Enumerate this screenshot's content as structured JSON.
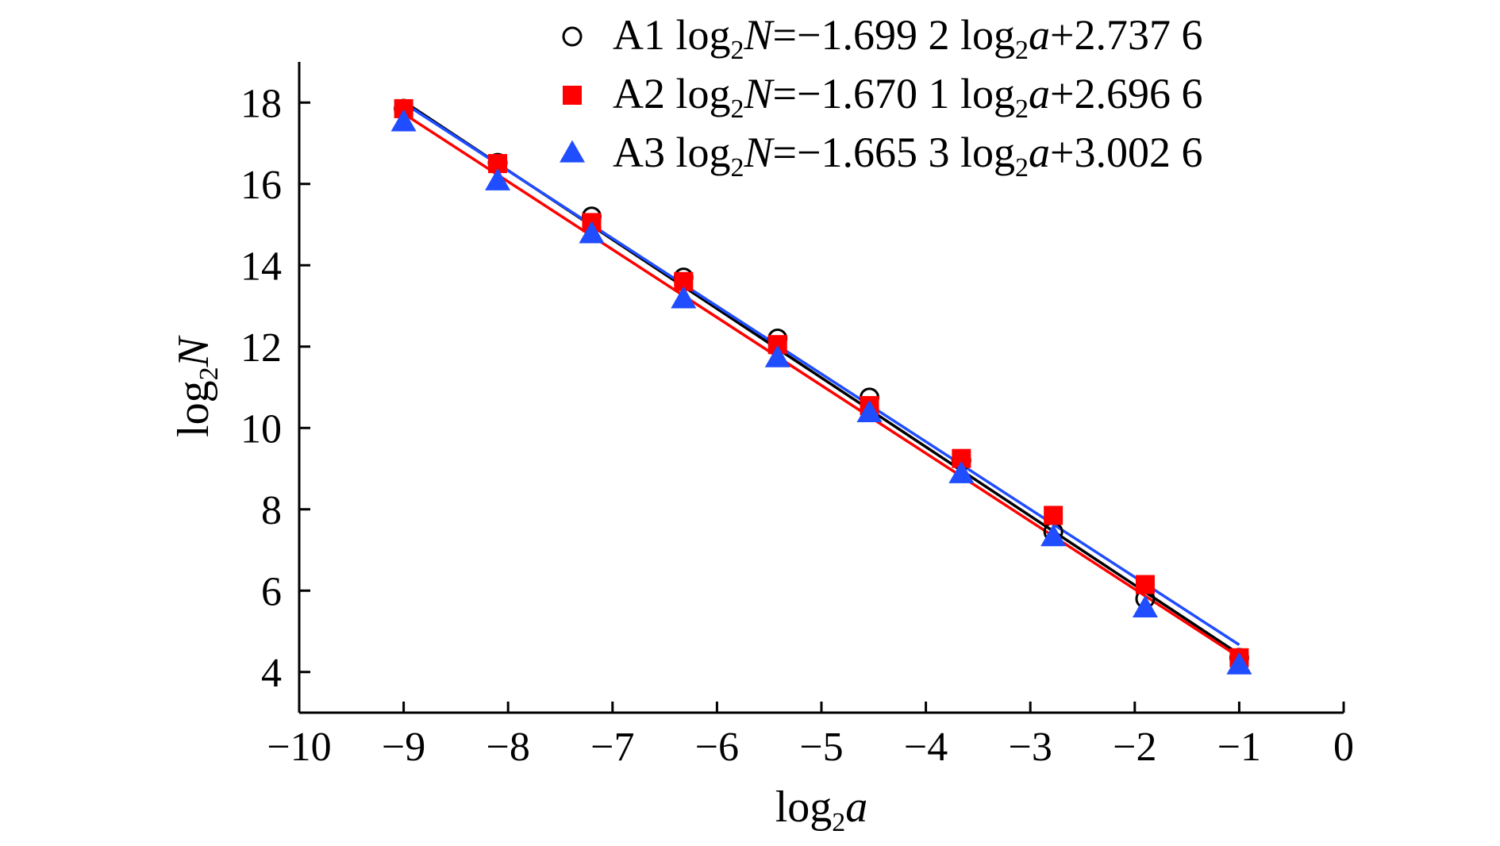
{
  "chart_data": {
    "type": "scatter",
    "title": "",
    "xlabel": {
      "base": "log",
      "sub": "2",
      "var": "a"
    },
    "ylabel": {
      "base": "log",
      "sub": "2",
      "var": "N"
    },
    "xlim": [
      -10,
      0
    ],
    "ylim": [
      3,
      19
    ],
    "xticks": [
      -10,
      -9,
      -8,
      -7,
      -6,
      -5,
      -4,
      -3,
      -2,
      -1,
      0
    ],
    "xtick_labels": [
      "−10",
      "−9",
      "−8",
      "−7",
      "−6",
      "−5",
      "−4",
      "−3",
      "−2",
      "−1",
      "0"
    ],
    "yticks": [
      4,
      6,
      8,
      10,
      12,
      14,
      16,
      18
    ],
    "ytick_labels": [
      "4",
      "6",
      "8",
      "10",
      "12",
      "14",
      "16",
      "18"
    ],
    "grid": false,
    "legend_position": "top-right",
    "series": [
      {
        "name": "A1",
        "marker": "open-circle",
        "color": "#000000",
        "equation": {
          "lhs_base": "log",
          "lhs_sub": "2",
          "lhs_var": "N",
          "eq": "=−1.699 2 ",
          "rhs_base": "log",
          "rhs_sub": "2",
          "rhs_var": "a",
          "tail": "+2.737 6"
        },
        "fit": {
          "slope": -1.6992,
          "intercept": 2.7376,
          "x_range": [
            -9,
            -1
          ]
        },
        "x": [
          -9,
          -8.1,
          -7.2,
          -6.32,
          -5.42,
          -4.54,
          -3.66,
          -2.78,
          -1.9,
          -1
        ],
        "y": [
          17.85,
          16.52,
          15.2,
          13.7,
          12.2,
          10.75,
          9.2,
          7.45,
          5.8,
          4.35
        ]
      },
      {
        "name": "A2",
        "marker": "filled-square",
        "color": "#ff0000",
        "equation": {
          "lhs_base": "log",
          "lhs_sub": "2",
          "lhs_var": "N",
          "eq": "=−1.670 1 ",
          "rhs_base": "log",
          "rhs_sub": "2",
          "rhs_var": "a",
          "tail": "+2.696 6"
        },
        "fit": {
          "slope": -1.6701,
          "intercept": 2.6966,
          "x_range": [
            -9,
            -1
          ]
        },
        "x": [
          -9,
          -8.1,
          -7.2,
          -6.32,
          -5.42,
          -4.54,
          -3.66,
          -2.78,
          -1.9,
          -1
        ],
        "y": [
          17.85,
          16.5,
          15.05,
          13.6,
          12.05,
          10.55,
          9.25,
          7.85,
          6.15,
          4.35
        ]
      },
      {
        "name": "A3",
        "marker": "filled-triangle",
        "color": "#1f4dff",
        "equation": {
          "lhs_base": "log",
          "lhs_sub": "2",
          "lhs_var": "N",
          "eq": "=−1.665 3 ",
          "rhs_base": "log",
          "rhs_sub": "2",
          "rhs_var": "a",
          "tail": "+3.002 6"
        },
        "fit": {
          "slope": -1.6653,
          "intercept": 3.0026,
          "x_range": [
            -9,
            -1
          ]
        },
        "x": [
          -9,
          -8.1,
          -7.2,
          -6.32,
          -5.42,
          -4.54,
          -3.66,
          -2.78,
          -1.9,
          -1
        ],
        "y": [
          17.5,
          16.05,
          14.75,
          13.15,
          11.7,
          10.35,
          8.85,
          7.3,
          5.55,
          4.15
        ]
      }
    ]
  }
}
